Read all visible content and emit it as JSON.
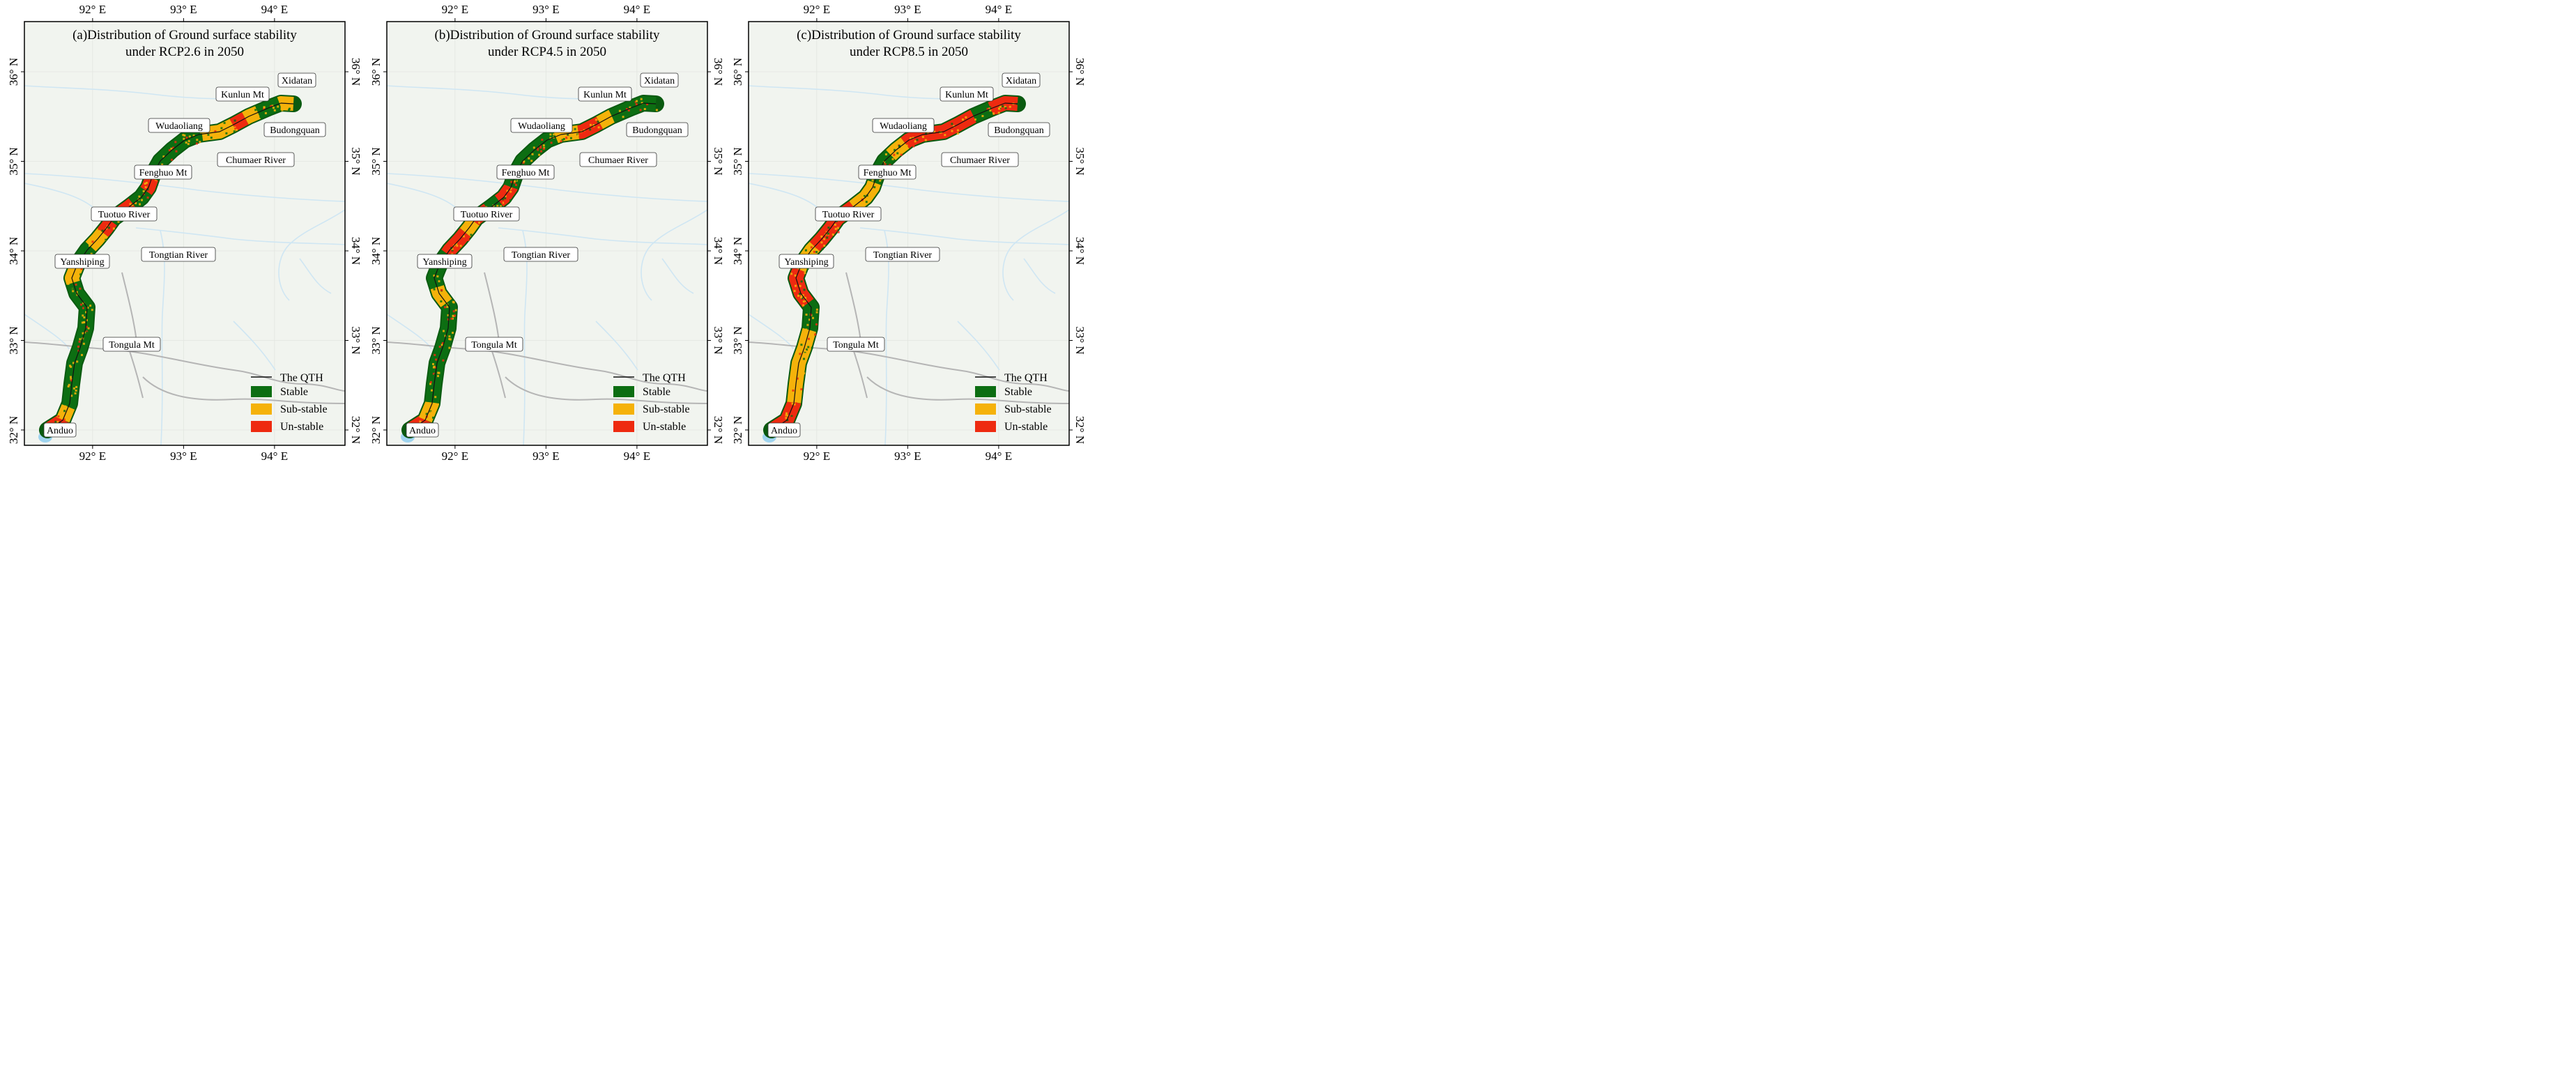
{
  "colors": {
    "stable": "#0c6e12",
    "sub_stable": "#f5b20a",
    "un_stable": "#ee2a10",
    "qth_line": "#111111",
    "river": "#cfe6f3",
    "boundary": "#b5b5b5",
    "background": "#f1f4ef"
  },
  "axes": {
    "lon_ticks": [
      "92° E",
      "93° E",
      "94° E"
    ],
    "lat_ticks": [
      "32° N",
      "33° N",
      "34° N",
      "35° N",
      "36° N"
    ]
  },
  "legend": {
    "qth": "The QTH",
    "stable": "Stable",
    "sub_stable": "Sub-stable",
    "un_stable": "Un-stable"
  },
  "places": [
    "Xidatan",
    "Kunlun Mt",
    "Budongquan",
    "Wudaoliang",
    "Chumaer River",
    "Fenghuo Mt",
    "Tuotuo River",
    "Tongtian River",
    "Yanshiping",
    "Tongula Mt",
    "Anduo"
  ],
  "maps": [
    {
      "title_line1": "(a)Distribution of Ground surface stability",
      "title_line2": "under RCP2.6 in 2050",
      "scenario": "RCP2.6",
      "year": "2050",
      "segments": [
        {
          "from": 0.0,
          "to": 0.04,
          "class": "un_stable"
        },
        {
          "from": 0.04,
          "to": 0.07,
          "class": "sub_stable"
        },
        {
          "from": 0.07,
          "to": 0.35,
          "class": "stable"
        },
        {
          "from": 0.35,
          "to": 0.4,
          "class": "sub_stable"
        },
        {
          "from": 0.4,
          "to": 0.44,
          "class": "stable"
        },
        {
          "from": 0.44,
          "to": 0.48,
          "class": "sub_stable"
        },
        {
          "from": 0.48,
          "to": 0.51,
          "class": "un_stable"
        },
        {
          "from": 0.51,
          "to": 0.54,
          "class": "stable"
        },
        {
          "from": 0.54,
          "to": 0.57,
          "class": "un_stable"
        },
        {
          "from": 0.57,
          "to": 0.61,
          "class": "stable"
        },
        {
          "from": 0.61,
          "to": 0.64,
          "class": "un_stable"
        },
        {
          "from": 0.64,
          "to": 0.79,
          "class": "stable"
        },
        {
          "from": 0.79,
          "to": 0.86,
          "class": "sub_stable"
        },
        {
          "from": 0.86,
          "to": 0.89,
          "class": "un_stable"
        },
        {
          "from": 0.89,
          "to": 0.92,
          "class": "sub_stable"
        },
        {
          "from": 0.92,
          "to": 0.97,
          "class": "stable"
        },
        {
          "from": 0.97,
          "to": 1.0,
          "class": "sub_stable"
        }
      ]
    },
    {
      "title_line1": "(b)Distribution of Ground surface stability",
      "title_line2": "under RCP4.5 in 2050",
      "scenario": "RCP4.5",
      "year": "2050",
      "segments": [
        {
          "from": 0.0,
          "to": 0.04,
          "class": "un_stable"
        },
        {
          "from": 0.04,
          "to": 0.08,
          "class": "sub_stable"
        },
        {
          "from": 0.08,
          "to": 0.3,
          "class": "stable"
        },
        {
          "from": 0.3,
          "to": 0.34,
          "class": "sub_stable"
        },
        {
          "from": 0.34,
          "to": 0.42,
          "class": "stable"
        },
        {
          "from": 0.42,
          "to": 0.48,
          "class": "un_stable"
        },
        {
          "from": 0.48,
          "to": 0.51,
          "class": "sub_stable"
        },
        {
          "from": 0.51,
          "to": 0.55,
          "class": "un_stable"
        },
        {
          "from": 0.55,
          "to": 0.58,
          "class": "stable"
        },
        {
          "from": 0.58,
          "to": 0.62,
          "class": "un_stable"
        },
        {
          "from": 0.62,
          "to": 0.77,
          "class": "stable"
        },
        {
          "from": 0.77,
          "to": 0.82,
          "class": "sub_stable"
        },
        {
          "from": 0.82,
          "to": 0.87,
          "class": "un_stable"
        },
        {
          "from": 0.87,
          "to": 0.9,
          "class": "sub_stable"
        },
        {
          "from": 0.9,
          "to": 1.0,
          "class": "stable"
        }
      ]
    },
    {
      "title_line1": "(c)Distribution of Ground surface stability",
      "title_line2": "under RCP8.5 in 2050",
      "scenario": "RCP8.5",
      "year": "2050",
      "segments": [
        {
          "from": 0.0,
          "to": 0.08,
          "class": "un_stable"
        },
        {
          "from": 0.08,
          "to": 0.24,
          "class": "sub_stable"
        },
        {
          "from": 0.24,
          "to": 0.3,
          "class": "stable"
        },
        {
          "from": 0.3,
          "to": 0.38,
          "class": "un_stable"
        },
        {
          "from": 0.38,
          "to": 0.44,
          "class": "sub_stable"
        },
        {
          "from": 0.44,
          "to": 0.56,
          "class": "un_stable"
        },
        {
          "from": 0.56,
          "to": 0.63,
          "class": "sub_stable"
        },
        {
          "from": 0.63,
          "to": 0.7,
          "class": "stable"
        },
        {
          "from": 0.7,
          "to": 0.74,
          "class": "sub_stable"
        },
        {
          "from": 0.74,
          "to": 0.9,
          "class": "un_stable"
        },
        {
          "from": 0.9,
          "to": 0.94,
          "class": "stable"
        },
        {
          "from": 0.94,
          "to": 1.0,
          "class": "un_stable"
        }
      ]
    }
  ]
}
